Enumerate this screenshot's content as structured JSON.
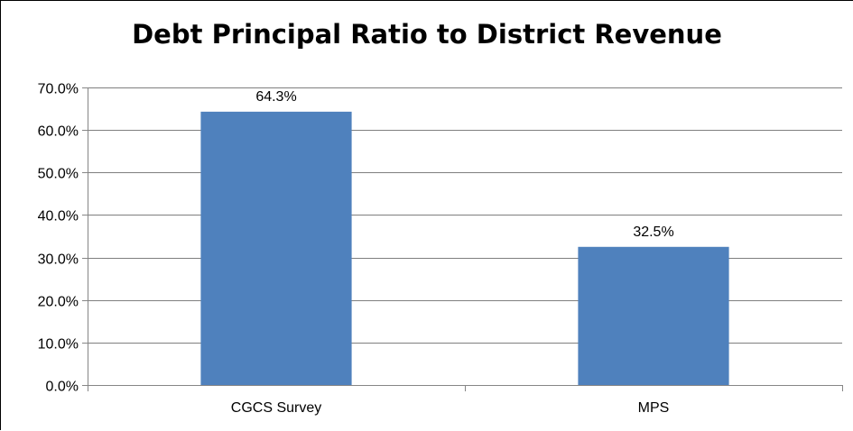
{
  "chart_data": {
    "type": "bar",
    "title": "Debt Principal Ratio to District Revenue",
    "categories": [
      "CGCS Survey",
      "MPS"
    ],
    "values": [
      64.3,
      32.5
    ],
    "data_labels": [
      "64.3%",
      "32.5%"
    ],
    "ylim": [
      0,
      70
    ],
    "yticks": [
      0,
      10,
      20,
      30,
      40,
      50,
      60,
      70
    ],
    "ytick_labels": [
      "0.0%",
      "10.0%",
      "20.0%",
      "30.0%",
      "40.0%",
      "50.0%",
      "60.0%",
      "70.0%"
    ],
    "xlabel": "",
    "ylabel": "",
    "grid": true,
    "legend": "none",
    "bar_color": "#4F81BD",
    "grid_color": "#7F7F7F"
  }
}
